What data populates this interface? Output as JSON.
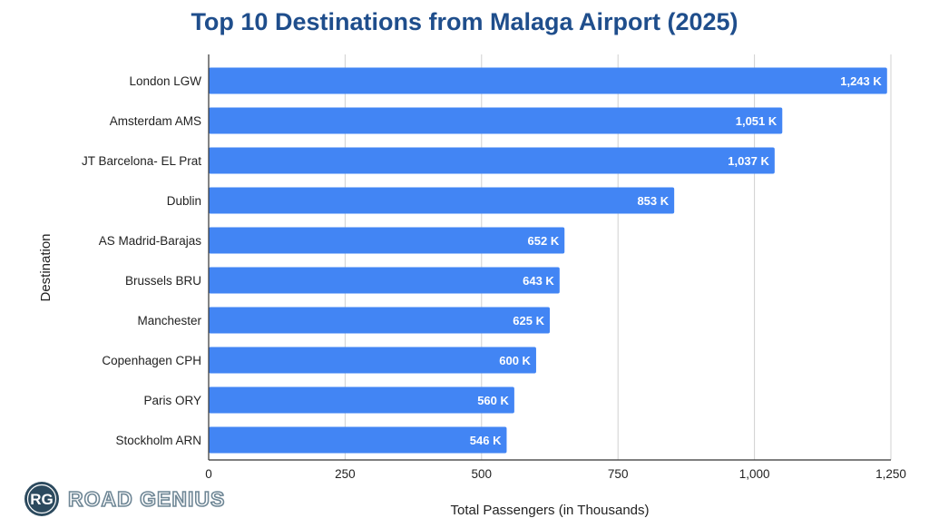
{
  "chart_data": {
    "type": "bar",
    "orientation": "horizontal",
    "title": "Top 10 Destinations from Malaga Airport (2025)",
    "xlabel": "Total Passengers (in Thousands)",
    "ylabel": "Destination",
    "xlim": [
      0,
      1250
    ],
    "xticks": [
      0,
      250,
      500,
      750,
      1000,
      1250
    ],
    "xtick_labels": [
      "0",
      "250",
      "500",
      "750",
      "1,000",
      "1,250"
    ],
    "grid": true,
    "bar_color": "#4285f4",
    "categories": [
      "London LGW",
      "Amsterdam AMS",
      "JT Barcelona- EL Prat",
      "Dublin",
      "AS Madrid-Barajas",
      "Brussels BRU",
      "Manchester",
      "Copenhagen CPH",
      "Paris ORY",
      "Stockholm ARN"
    ],
    "values": [
      1243,
      1051,
      1037,
      853,
      652,
      643,
      625,
      600,
      560,
      546
    ],
    "value_labels": [
      "1,243 K",
      "1,051 K",
      "1,037 K",
      "853 K",
      "652 K",
      "643 K",
      "625 K",
      "600 K",
      "560 K",
      "546 K"
    ]
  },
  "branding": {
    "logo_initials": "RG",
    "logo_text": "ROAD GENIUS",
    "logo_color": "#2c4a5e"
  }
}
